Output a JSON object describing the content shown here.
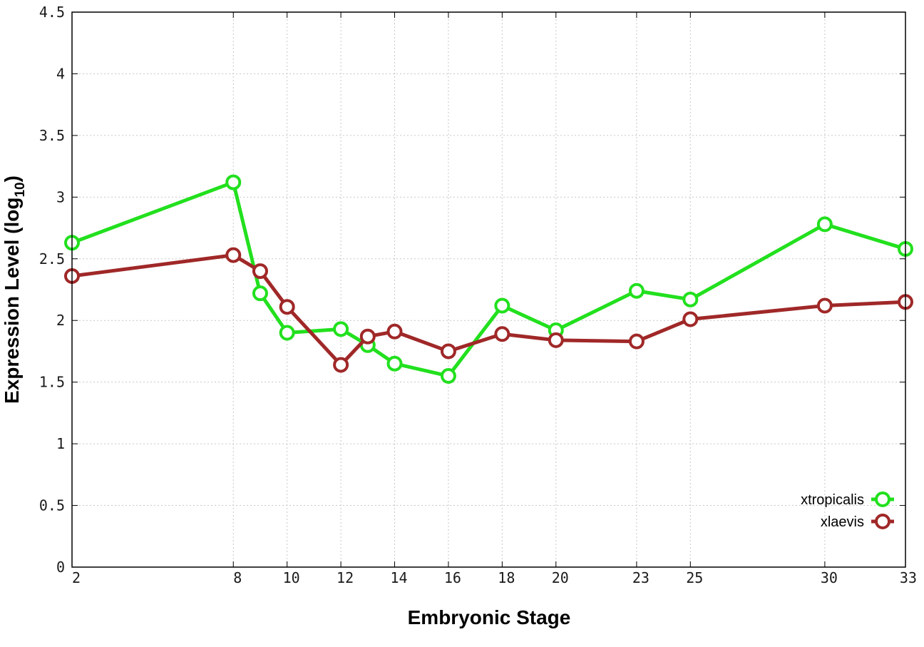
{
  "chart_data": {
    "type": "line",
    "title": "",
    "xlabel": "Embryonic Stage",
    "ylabel": "Expression Level (log",
    "ylabel_subscript": "10",
    "ylabel_suffix": ")",
    "x_ticks": [
      "2",
      "8",
      "10",
      "12",
      "14",
      "16",
      "18",
      "20",
      "23",
      "25",
      "30",
      "33"
    ],
    "x_tick_values": [
      2,
      8,
      10,
      12,
      14,
      16,
      18,
      20,
      23,
      25,
      30,
      33
    ],
    "y_ticks": [
      "0",
      "0.5",
      "1",
      "1.5",
      "2",
      "2.5",
      "3",
      "3.5",
      "4",
      "4.5"
    ],
    "y_tick_values": [
      0,
      0.5,
      1,
      1.5,
      2,
      2.5,
      3,
      3.5,
      4,
      4.5
    ],
    "xlim": [
      2,
      33
    ],
    "ylim": [
      0,
      4.5
    ],
    "grid": true,
    "legend_position": "bottom-right",
    "series": [
      {
        "name": "xtropicalis",
        "color": "#22e01e",
        "x": [
          2,
          8,
          9,
          10,
          12,
          13,
          14,
          16,
          18,
          20,
          23,
          25,
          30,
          33
        ],
        "y": [
          2.63,
          3.12,
          2.22,
          1.9,
          1.93,
          1.8,
          1.65,
          1.55,
          2.12,
          1.92,
          2.24,
          2.17,
          2.78,
          2.58
        ]
      },
      {
        "name": "xlaevis",
        "color": "#a02828",
        "x": [
          2,
          8,
          9,
          10,
          12,
          13,
          14,
          16,
          18,
          20,
          23,
          25,
          30,
          33
        ],
        "y": [
          2.36,
          2.53,
          2.4,
          2.11,
          1.64,
          1.87,
          1.91,
          1.75,
          1.89,
          1.84,
          1.83,
          2.01,
          2.12,
          2.15
        ]
      }
    ]
  }
}
